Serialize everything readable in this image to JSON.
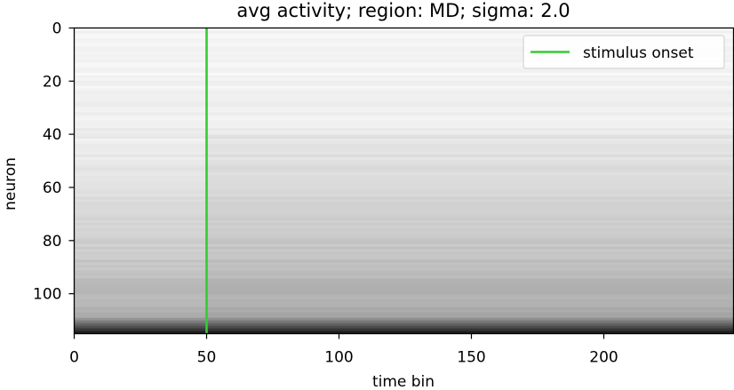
{
  "chart_data": {
    "type": "heatmap",
    "title": "avg activity; region: MD; sigma: 2.0",
    "xlabel": "time bin",
    "ylabel": "neuron",
    "xlim": [
      0,
      249
    ],
    "ylim": [
      115,
      0
    ],
    "x_ticks": [
      0,
      50,
      100,
      150,
      200
    ],
    "y_ticks": [
      0,
      20,
      40,
      60,
      80,
      100
    ],
    "n_neurons": 116,
    "n_time_bins": 249,
    "colormap": "Greys",
    "vline": {
      "x": 50,
      "color": "#33cc33",
      "label": "stimulus onset"
    },
    "legend": {
      "entries": [
        "stimulus onset"
      ],
      "placement": "top-right"
    },
    "grid": false
  }
}
